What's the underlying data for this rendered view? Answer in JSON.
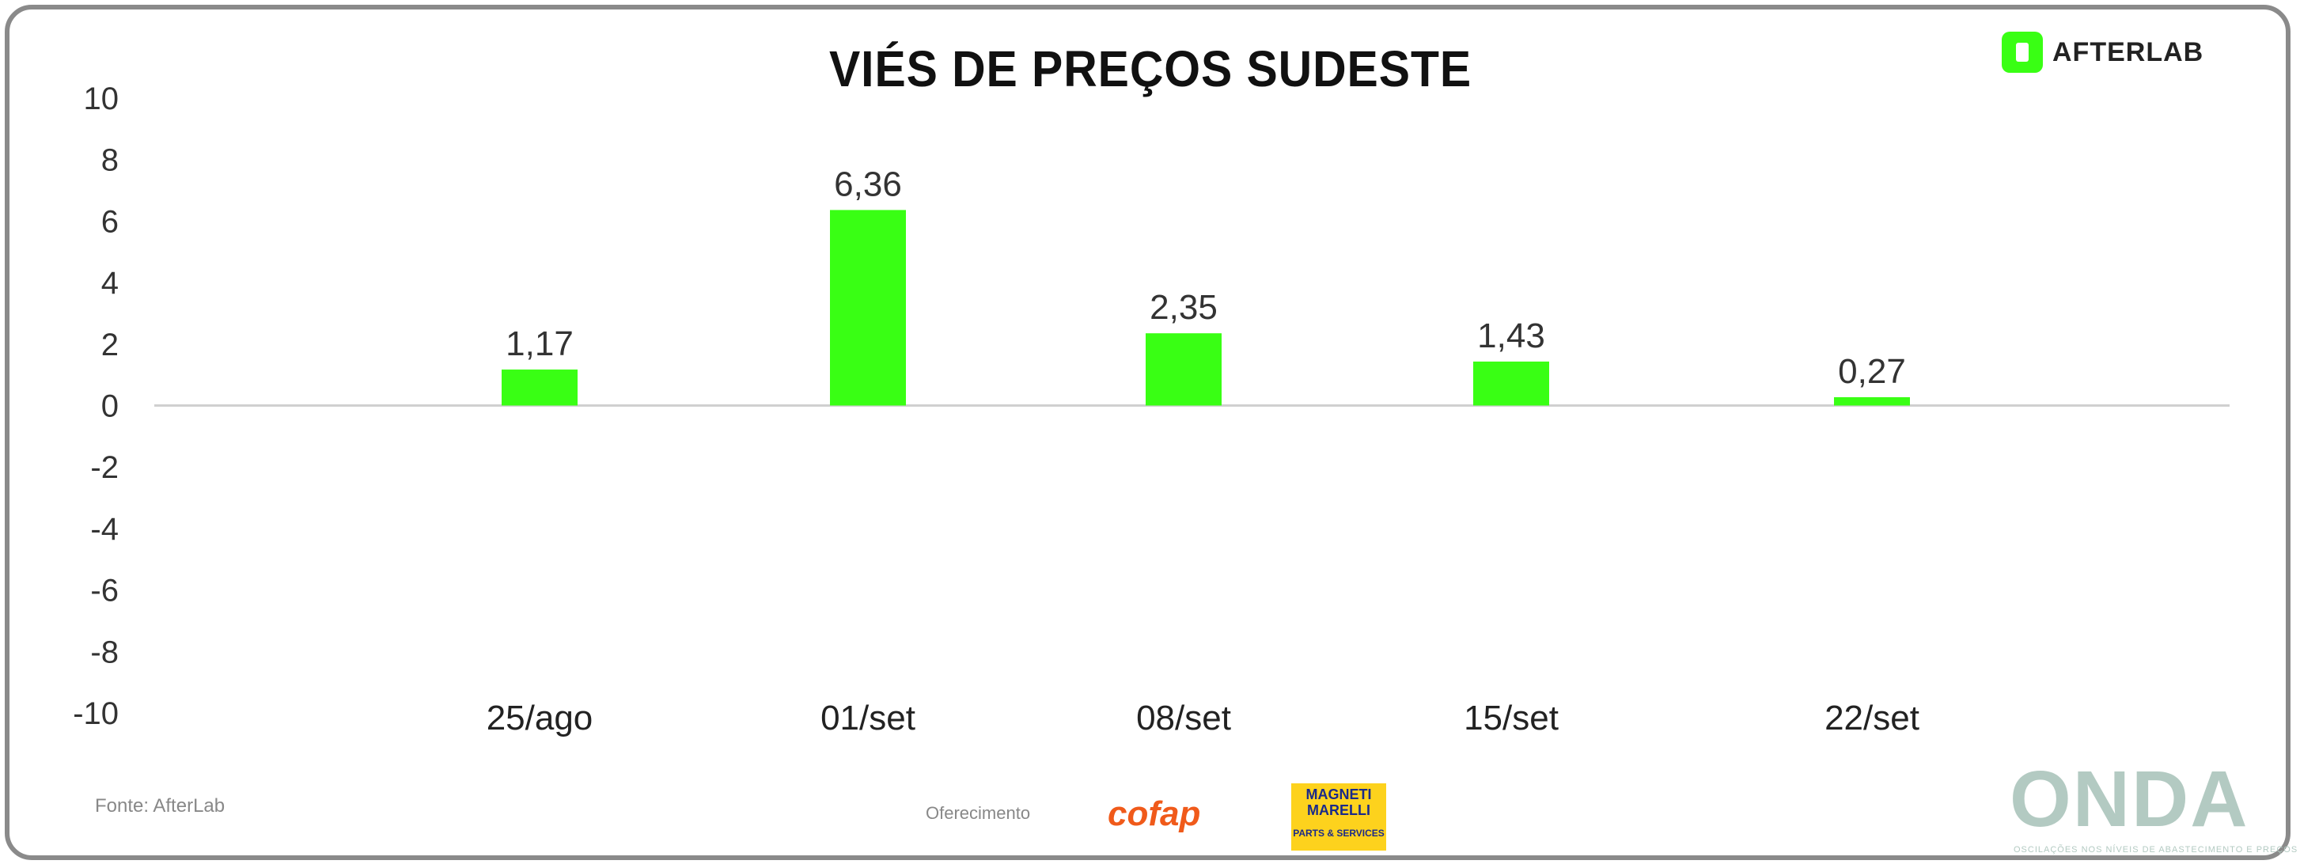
{
  "header": {
    "title": "VIÉS DE PREÇOS SUDESTE",
    "brand": "AFTERLAB"
  },
  "footer": {
    "source": "Fonte: AfterLab",
    "sponsor_label": "Oferecimento",
    "sponsor1": "cofap",
    "sponsor2_line1": "MAGNETI MARELLI",
    "sponsor2_line2": "PARTS & SERVICES",
    "brand": "ONDA",
    "brand_tagline": "OSCILAÇÕES NOS NÍVEIS DE ABASTECIMENTO E PREÇOS"
  },
  "chart_data": {
    "type": "bar",
    "title": "VIÉS DE PREÇOS SUDESTE",
    "categories": [
      "25/ago",
      "01/set",
      "08/set",
      "15/set",
      "22/set"
    ],
    "values": [
      1.17,
      6.36,
      2.35,
      1.43,
      0.27
    ],
    "data_labels": [
      "1,17",
      "6,36",
      "2,35",
      "1,43",
      "0,27"
    ],
    "ylim": [
      -10,
      10
    ],
    "yticks": [
      "10",
      "8",
      "6",
      "4",
      "2",
      "0",
      "-2",
      "-4",
      "-6",
      "-8",
      "-10"
    ],
    "bar_color": "#39ff14",
    "grid": false,
    "xlabel": "",
    "ylabel": ""
  }
}
